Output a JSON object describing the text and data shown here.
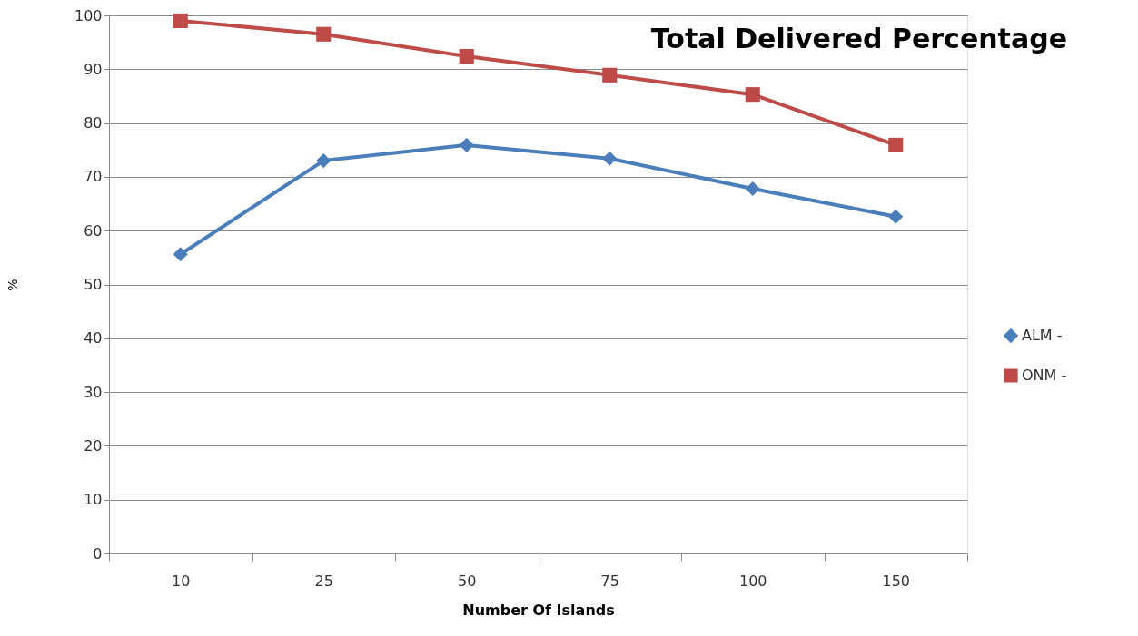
{
  "chart_data": {
    "type": "line",
    "title": "Total Delivered Percentage",
    "xlabel": "Number Of Islands",
    "ylabel": "%",
    "categories": [
      "10",
      "25",
      "50",
      "75",
      "100",
      "150"
    ],
    "series": [
      {
        "name": "ALM -",
        "color": "#4a7ebb",
        "marker": "diamond",
        "values": [
          55.6,
          73.0,
          75.9,
          73.4,
          67.8,
          62.6
        ]
      },
      {
        "name": "ONM -",
        "color": "#be4b48",
        "marker": "square",
        "values": [
          99.0,
          96.5,
          92.4,
          88.9,
          85.3,
          75.9
        ]
      }
    ],
    "ylim": [
      0,
      100
    ],
    "yticks": [
      0,
      10,
      20,
      30,
      40,
      50,
      60,
      70,
      80,
      90,
      100
    ],
    "grid": "y",
    "legend": "right"
  }
}
